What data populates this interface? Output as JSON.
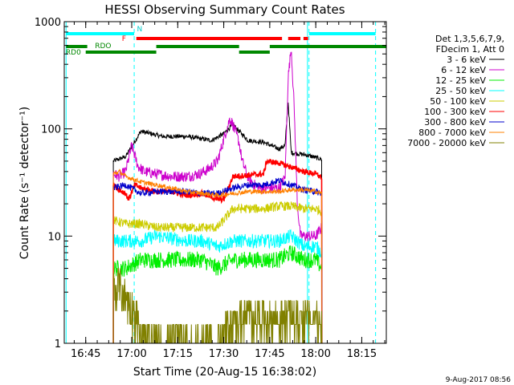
{
  "chart_data": {
    "type": "line",
    "title": "HESSI Observing Summary Count Rates",
    "xlabel": "Start Time (20-Aug-15 16:38:02)",
    "ylabel": "Count Rate (s⁻¹ detector⁻¹)",
    "y_scale": "log",
    "ylim": [
      1,
      1000
    ],
    "xlim_minutes_from_1638": [
      0,
      105
    ],
    "x_ticks": [
      "16:45",
      "17:00",
      "17:15",
      "17:30",
      "17:45",
      "18:00",
      "18:15"
    ],
    "x_tick_minutes": [
      7,
      22,
      37,
      52,
      67,
      82,
      97
    ],
    "y_ticks": [
      "1",
      "10",
      "100",
      "1000"
    ],
    "grid": false,
    "legend_position": "top-right outside",
    "legend_header": [
      "Det 1,3,5,6,7,9,",
      "FDecim 1, Att 0"
    ],
    "series": [
      {
        "name": "3 - 6 keV",
        "color": "#000000",
        "t": [
          16,
          20,
          25,
          32,
          40,
          48,
          52,
          55,
          57,
          60,
          65,
          70,
          72,
          73,
          74,
          79,
          81,
          84
        ],
        "v": [
          50,
          55,
          95,
          85,
          85,
          78,
          90,
          110,
          95,
          78,
          75,
          65,
          70,
          180,
          60,
          57,
          55,
          52
        ]
      },
      {
        "name": "6 - 12 keV",
        "color": "#cc00cc",
        "t": [
          16,
          18,
          20,
          22,
          24,
          26,
          30,
          35,
          40,
          44,
          47,
          50,
          52,
          54,
          55,
          57,
          58,
          60,
          62,
          64,
          70,
          72,
          73,
          74,
          75,
          76,
          77,
          80,
          82,
          84
        ],
        "v": [
          38,
          36,
          40,
          70,
          45,
          40,
          38,
          36,
          36,
          38,
          42,
          50,
          80,
          125,
          110,
          75,
          50,
          35,
          30,
          28,
          28,
          35,
          300,
          580,
          150,
          20,
          10,
          10,
          10,
          12
        ]
      },
      {
        "name": "12 - 25 keV",
        "color": "#00ee00",
        "t": [
          16,
          20,
          25,
          30,
          40,
          45,
          50,
          55,
          60,
          65,
          70,
          74,
          78,
          82,
          84
        ],
        "v": [
          5,
          5,
          6,
          6,
          6,
          6,
          5,
          6,
          6,
          6,
          6,
          7,
          6,
          6,
          5
        ]
      },
      {
        "name": "25 - 50 keV",
        "color": "#00ffff",
        "t": [
          16,
          20,
          25,
          30,
          40,
          45,
          50,
          55,
          60,
          65,
          70,
          74,
          78,
          82,
          84
        ],
        "v": [
          9,
          9,
          9,
          10,
          9,
          9,
          8,
          9,
          9,
          9,
          9,
          10,
          8,
          8,
          7
        ]
      },
      {
        "name": "50 - 100 keV",
        "color": "#cccc00",
        "t": [
          16,
          20,
          25,
          30,
          40,
          45,
          50,
          55,
          60,
          65,
          70,
          74,
          78,
          82,
          84
        ],
        "v": [
          14,
          13,
          13,
          12,
          12,
          12,
          12,
          18,
          18,
          18,
          19,
          19,
          18,
          18,
          17
        ]
      },
      {
        "name": "100 - 300 keV",
        "color": "#ff0000",
        "t": [
          16,
          18,
          20,
          21,
          23,
          25,
          30,
          35,
          40,
          45,
          50,
          52,
          55,
          60,
          65,
          66,
          70,
          74,
          78,
          82,
          84
        ],
        "v": [
          30,
          27,
          25,
          22,
          30,
          28,
          26,
          26,
          24,
          25,
          22,
          22,
          36,
          37,
          38,
          50,
          48,
          44,
          40,
          38,
          35
        ]
      },
      {
        "name": "300 - 800 keV",
        "color": "#0000cc",
        "t": [
          16,
          20,
          25,
          30,
          40,
          45,
          50,
          55,
          60,
          65,
          70,
          74,
          78,
          82,
          84
        ],
        "v": [
          28,
          30,
          25,
          26,
          26,
          25,
          25,
          28,
          30,
          30,
          33,
          30,
          27,
          26,
          25
        ]
      },
      {
        "name": "800 - 7000 keV",
        "color": "#ff8000",
        "t": [
          16,
          18,
          20,
          25,
          30,
          35,
          40,
          45,
          50,
          55,
          60,
          65,
          70,
          74,
          78,
          82,
          84
        ],
        "v": [
          38,
          40,
          36,
          32,
          30,
          28,
          26,
          25,
          24,
          25,
          26,
          26,
          26,
          27,
          27,
          26,
          25
        ]
      },
      {
        "name": "7000 - 20000 keV",
        "color": "#808000",
        "t": [
          16,
          17,
          18,
          19,
          20,
          21,
          22,
          23,
          24,
          25,
          26,
          28,
          30,
          35,
          40,
          45,
          50,
          55,
          60,
          65,
          70,
          72,
          74,
          76,
          78,
          82,
          84
        ],
        "v": [
          3.5,
          3,
          3.5,
          3,
          2.5,
          2.3,
          2,
          2,
          1.5,
          1.2,
          1,
          1,
          1,
          1,
          1,
          1,
          1,
          1.5,
          1.8,
          1.7,
          1.6,
          1.7,
          1.8,
          1.6,
          1.7,
          1.6,
          1.5
        ]
      }
    ],
    "flags": {
      "saa_labels": [
        "RD0",
        "RDO"
      ],
      "night_label": "N",
      "flare_label": "F"
    },
    "timestamp": "9-Aug-2017 08:56"
  }
}
